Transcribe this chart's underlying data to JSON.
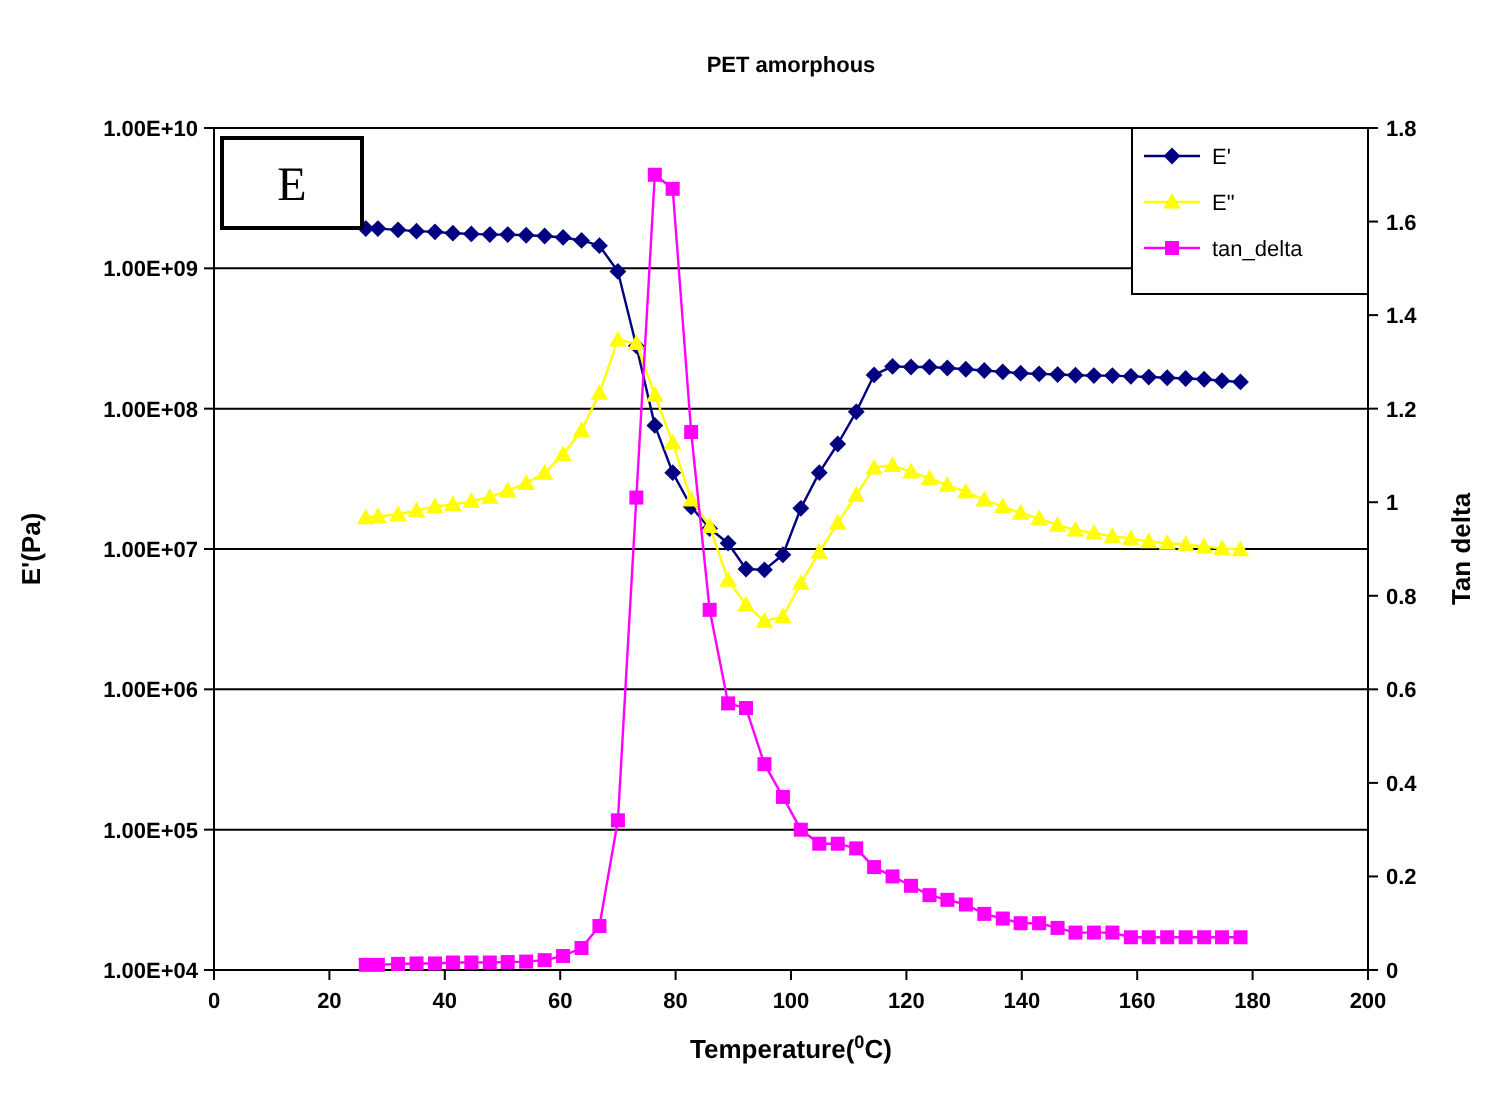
{
  "chart_data": {
    "type": "line",
    "title": "PET amorphous",
    "xlabel": "Temperature($^{0}$C)",
    "ylabel": "E'(Pa)",
    "y2label": "Tan delta",
    "annotations": [
      "E"
    ],
    "x": [
      26.3,
      28.4,
      31.9,
      35.1,
      38.3,
      41.4,
      44.6,
      47.8,
      50.9,
      54.1,
      57.3,
      60.5,
      63.7,
      66.8,
      70.0,
      73.2,
      76.4,
      79.5,
      82.7,
      85.9,
      89.1,
      92.2,
      95.4,
      98.6,
      101.7,
      104.9,
      108.1,
      111.3,
      114.4,
      117.6,
      120.8,
      124.0,
      127.1,
      130.3,
      133.5,
      136.7,
      139.8,
      143.0,
      146.2,
      149.3,
      152.5,
      155.7,
      158.9,
      162.0,
      165.2,
      168.4,
      171.6,
      174.7,
      177.9
    ],
    "series": [
      {
        "name": "E'",
        "color": "#000080",
        "marker": "diamond",
        "values": [
          1920000000.0,
          1920000000.0,
          1880000000.0,
          1840000000.0,
          1820000000.0,
          1780000000.0,
          1760000000.0,
          1740000000.0,
          1740000000.0,
          1720000000.0,
          1700000000.0,
          1660000000.0,
          1580000000.0,
          1450000000.0,
          950000000.0,
          280000000.0,
          76000000.0,
          35000000.0,
          20000000.0,
          14000000.0,
          11000000.0,
          7200000.0,
          7100000.0,
          9100000.0,
          19500000.0,
          35000000.0,
          56000000.0,
          95000000.0,
          174000000.0,
          200000000.0,
          198000000.0,
          198000000.0,
          195000000.0,
          191000000.0,
          187000000.0,
          183000000.0,
          179000000.0,
          177000000.0,
          175000000.0,
          173000000.0,
          172000000.0,
          172000000.0,
          170000000.0,
          168000000.0,
          166000000.0,
          164000000.0,
          162000000.0,
          158000000.0,
          155000000.0
        ]
      },
      {
        "name": "E\"",
        "color": "#ffff00",
        "marker": "triangle",
        "values": [
          16700000.0,
          17100000.0,
          17600000.0,
          18800000.0,
          20100000.0,
          20800000.0,
          21900000.0,
          23400000.0,
          26100000.0,
          29400000.0,
          34700000.0,
          47200000.0,
          70000000.0,
          129000000.0,
          309000000.0,
          292000000.0,
          125000000.0,
          57000000.0,
          22400000.0,
          14500000.0,
          6000000.0,
          4000000.0,
          3060000.0,
          3300000.0,
          5700000.0,
          9500000.0,
          15300000.0,
          24200000.0,
          37900000.0,
          39500000.0,
          35500000.0,
          31800000.0,
          28500000.0,
          25500000.0,
          22400000.0,
          20100000.0,
          18000000.0,
          16500000.0,
          14800000.0,
          13700000.0,
          13000000.0,
          12300000.0,
          11900000.0,
          11300000.0,
          11000000.0,
          10800000.0,
          10400000.0,
          10100000.0,
          9900000.0
        ]
      },
      {
        "name": "tan_delta",
        "color": "#ff00ff",
        "marker": "square",
        "axis": "y2",
        "values": [
          0.011,
          0.011,
          0.013,
          0.014,
          0.014,
          0.016,
          0.016,
          0.016,
          0.017,
          0.018,
          0.021,
          0.03,
          0.047,
          0.094,
          0.32,
          1.01,
          1.7,
          1.67,
          1.15,
          0.77,
          0.57,
          0.56,
          0.44,
          0.37,
          0.3,
          0.27,
          0.27,
          0.26,
          0.22,
          0.2,
          0.18,
          0.16,
          0.15,
          0.14,
          0.12,
          0.11,
          0.1,
          0.1,
          0.09,
          0.08,
          0.08,
          0.08,
          0.07,
          0.07,
          0.07,
          0.07,
          0.07,
          0.07,
          0.07
        ]
      }
    ],
    "log": "y",
    "xlim": [
      0,
      200
    ],
    "xticks": [
      0,
      20,
      40,
      60,
      80,
      100,
      120,
      140,
      160,
      180,
      200
    ],
    "ylim": [
      10000.0,
      10000000000.0
    ],
    "yticks": [
      {
        "value": 10000.0,
        "label": "1.00E+04"
      },
      {
        "value": 100000.0,
        "label": "1.00E+05"
      },
      {
        "value": 1000000.0,
        "label": "1.00E+06"
      },
      {
        "value": 10000000.0,
        "label": "1.00E+07"
      },
      {
        "value": 100000000.0,
        "label": "1.00E+08"
      },
      {
        "value": 1000000000.0,
        "label": "1.00E+09"
      },
      {
        "value": 10000000000.0,
        "label": "1.00E+10"
      }
    ],
    "y2lim": [
      0,
      1.8
    ],
    "y2ticks": [
      0,
      0.2,
      0.4,
      0.6,
      0.8,
      1,
      1.2,
      1.4,
      1.6,
      1.8
    ],
    "grid": "y",
    "legend": "top right"
  }
}
